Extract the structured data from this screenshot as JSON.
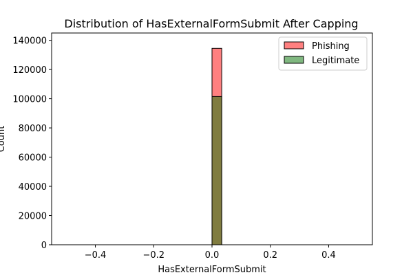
{
  "chart_data": {
    "type": "bar",
    "title": "Distribution of HasExternalFormSubmit After Capping",
    "xlabel": "HasExternalFormSubmit",
    "ylabel": "Count",
    "xlim": [
      -0.55,
      0.55
    ],
    "ylim": [
      0,
      145000
    ],
    "xticks": [
      -0.4,
      -0.2,
      0.0,
      0.2,
      0.4
    ],
    "xtick_labels": [
      "−0.4",
      "−0.2",
      "0.0",
      "0.2",
      "0.4"
    ],
    "yticks": [
      0,
      20000,
      40000,
      60000,
      80000,
      100000,
      120000,
      140000
    ],
    "ytick_labels": [
      "0",
      "20000",
      "40000",
      "60000",
      "80000",
      "100000",
      "120000",
      "140000"
    ],
    "grid": false,
    "legend_position": "top-right",
    "bins": {
      "range": [
        -0.5,
        0.5
      ],
      "count": 30
    },
    "series": [
      {
        "name": "Phishing",
        "color": "#ff8080",
        "values": [
          {
            "x": 0.0,
            "count": 134500
          }
        ]
      },
      {
        "name": "Legitimate",
        "color": "#80b880",
        "values": [
          {
            "x": 0.0,
            "count": 101500
          }
        ]
      }
    ],
    "overlap_color": "#807c40"
  }
}
